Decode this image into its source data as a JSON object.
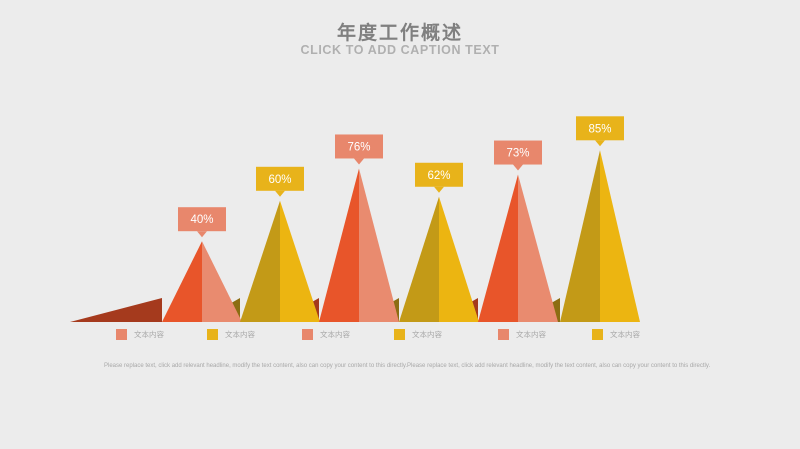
{
  "header": {
    "title": "年度工作概述",
    "subtitle": "CLICK TO ADD CAPTION TEXT"
  },
  "colors": {
    "orange": "#e8552a",
    "salmon": "#e98b6f",
    "dark_red": "#a53a1d",
    "gold": "#c39a17",
    "yellow": "#ecb511",
    "dark_gold": "#8c6d12",
    "label_orange": "#e8876c",
    "label_yellow": "#e8b31a"
  },
  "chart_data": {
    "type": "bar",
    "categories": [
      "文本内容",
      "文本内容",
      "文本内容",
      "文本内容",
      "文本内容",
      "文本内容"
    ],
    "values": [
      40,
      60,
      76,
      62,
      73,
      85
    ],
    "value_labels": [
      "40%",
      "60%",
      "76%",
      "62%",
      "73%",
      "85%"
    ],
    "series_colors": [
      "orange",
      "yellow",
      "orange",
      "yellow",
      "orange",
      "yellow"
    ],
    "ylim": [
      0,
      100
    ],
    "title": "年度工作概述",
    "subtitle": "CLICK TO ADD CAPTION TEXT",
    "legend_position": "bottom",
    "grid": false
  },
  "legend": {
    "items": [
      {
        "label": "文本内容",
        "color": "#e8876c"
      },
      {
        "label": "文本内容",
        "color": "#e8b31a"
      },
      {
        "label": "文本内容",
        "color": "#e8876c"
      },
      {
        "label": "文本内容",
        "color": "#e8b31a"
      },
      {
        "label": "文本内容",
        "color": "#e8876c"
      },
      {
        "label": "文本内容",
        "color": "#e8b31a"
      }
    ]
  },
  "footnote": "Please replace text, click add relevant headline, modify the text content, also can copy your content to this directly.Please replace text, click add relevant headline, modify the text content, also can copy your content to this directly."
}
